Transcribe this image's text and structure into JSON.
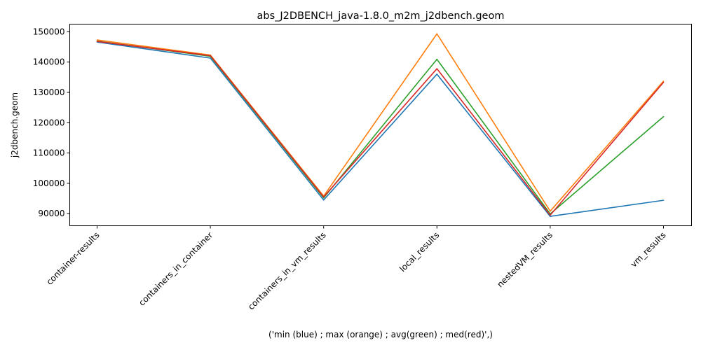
{
  "chart_data": {
    "type": "line",
    "title": "abs_J2DBENCH_java-1.8.0_m2m_j2dbench.geom",
    "xlabel": "('min (blue) ; max (orange) ; avg(green) ; med(red)',)",
    "ylabel": "j2dbench.geom",
    "categories": [
      "container-results",
      "containers_in_container",
      "containers_in_vm_results",
      "local_results",
      "nestedVM_results",
      "vm_results"
    ],
    "ylim": [
      86000,
      152500
    ],
    "yticks": [
      90000,
      100000,
      110000,
      120000,
      130000,
      140000,
      150000
    ],
    "ytick_labels": [
      "90000",
      "100000",
      "110000",
      "120000",
      "130000",
      "140000",
      "150000"
    ],
    "grid": false,
    "series": [
      {
        "color": "#1f77b4",
        "values": [
          146600,
          141300,
          94500,
          136000,
          89100,
          94400
        ]
      },
      {
        "color": "#ff7f0e",
        "values": [
          147300,
          142300,
          95800,
          149300,
          90800,
          133700
        ]
      },
      {
        "color": "#2ca02c",
        "values": [
          146900,
          141900,
          95200,
          140900,
          89900,
          122000
        ]
      },
      {
        "color": "#d62728",
        "values": [
          146800,
          142100,
          95500,
          137800,
          89500,
          133300
        ]
      }
    ]
  }
}
